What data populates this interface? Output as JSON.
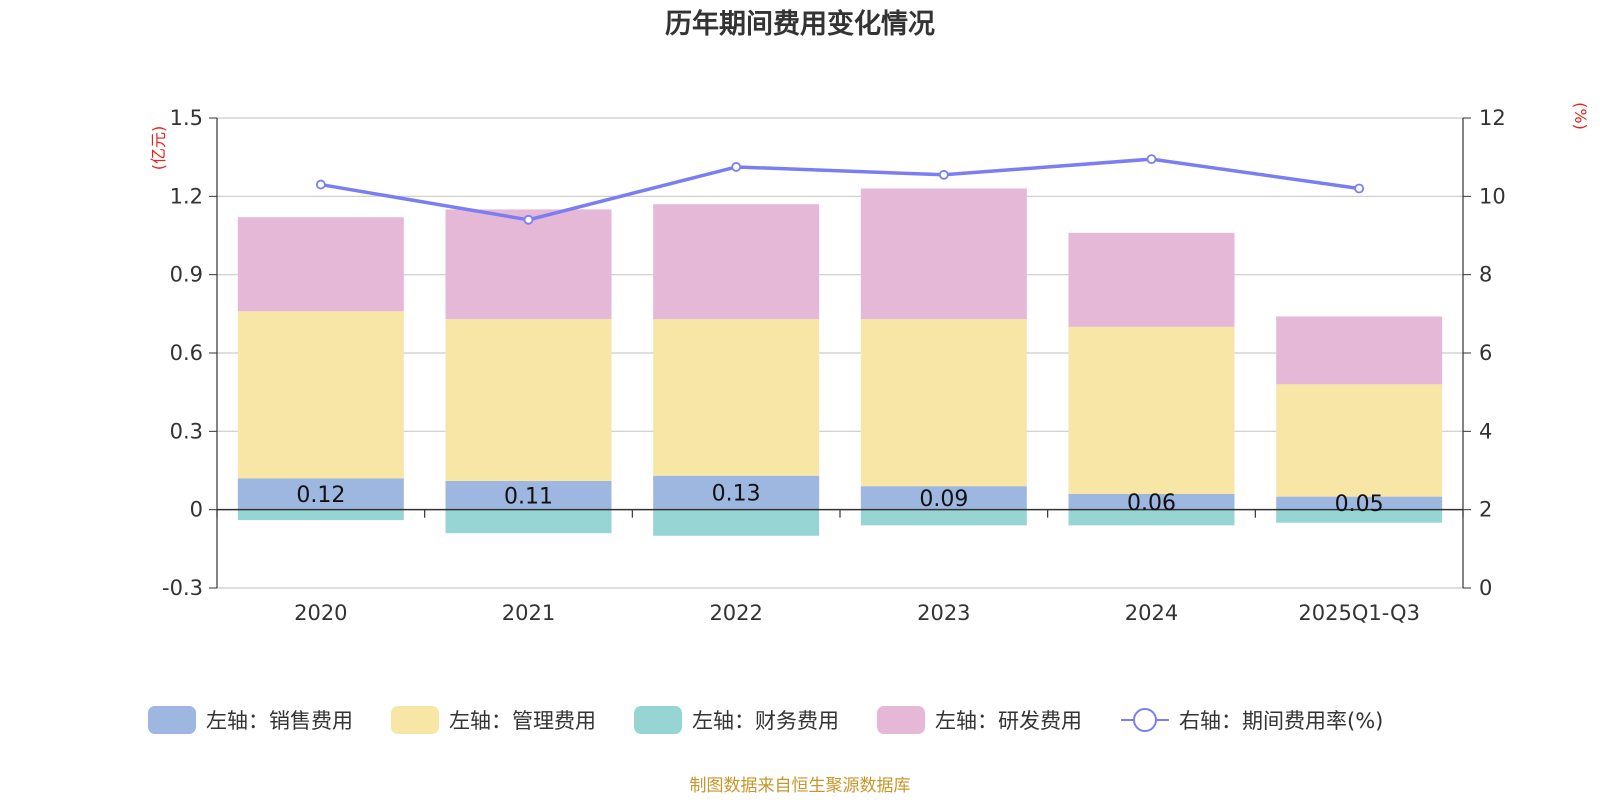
{
  "chart_data": {
    "type": "bar",
    "title": "历年期间费用变化情况",
    "categories": [
      "2020",
      "2021",
      "2022",
      "2023",
      "2024",
      "2025Q1-Q3"
    ],
    "left_axis": {
      "unit": "(亿元)",
      "ylim": [
        -0.3,
        1.5
      ],
      "ticks": [
        "1.5",
        "1.2",
        "0.9",
        "0.6",
        "0.3",
        "0",
        "-0.3"
      ],
      "tick_values": [
        1.5,
        1.2,
        0.9,
        0.6,
        0.3,
        0,
        -0.3
      ]
    },
    "right_axis": {
      "unit": "(%)",
      "ylim": [
        0,
        12
      ],
      "ticks": [
        "12",
        "10",
        "8",
        "6",
        "4",
        "2",
        "0"
      ],
      "tick_values": [
        12,
        10,
        8,
        6,
        4,
        2,
        0
      ]
    },
    "series": [
      {
        "name": "左轴：销售费用",
        "axis": "left",
        "stack": true,
        "color": "#9db7e0",
        "values": [
          0.12,
          0.11,
          0.13,
          0.09,
          0.06,
          0.05
        ],
        "labels": [
          "0.12",
          "0.11",
          "0.13",
          "0.09",
          "0.06",
          "0.05"
        ]
      },
      {
        "name": "左轴：管理费用",
        "axis": "left",
        "stack": true,
        "color": "#f8e6a7",
        "values": [
          0.64,
          0.62,
          0.6,
          0.64,
          0.64,
          0.43
        ]
      },
      {
        "name": "左轴：财务费用",
        "axis": "left",
        "stack": true,
        "color": "#97d4d4",
        "values": [
          -0.04,
          -0.09,
          -0.1,
          -0.06,
          -0.06,
          -0.05
        ]
      },
      {
        "name": "左轴：研发费用",
        "axis": "left",
        "stack": true,
        "color": "#e6b8d8",
        "values": [
          0.36,
          0.42,
          0.44,
          0.5,
          0.36,
          0.26
        ]
      },
      {
        "name": "右轴：期间费用率(%)",
        "axis": "right",
        "type": "line",
        "color": "#7a7ef0",
        "values": [
          10.3,
          9.4,
          10.75,
          10.55,
          10.95,
          10.2
        ]
      }
    ],
    "legend_position": "bottom",
    "grid": true
  },
  "source_note": "制图数据来自恒生聚源数据库",
  "colors": {
    "unit_red": "#e6221c",
    "source_gold": "#c8962a",
    "axis": "#333333",
    "grid": "#cccccc"
  }
}
